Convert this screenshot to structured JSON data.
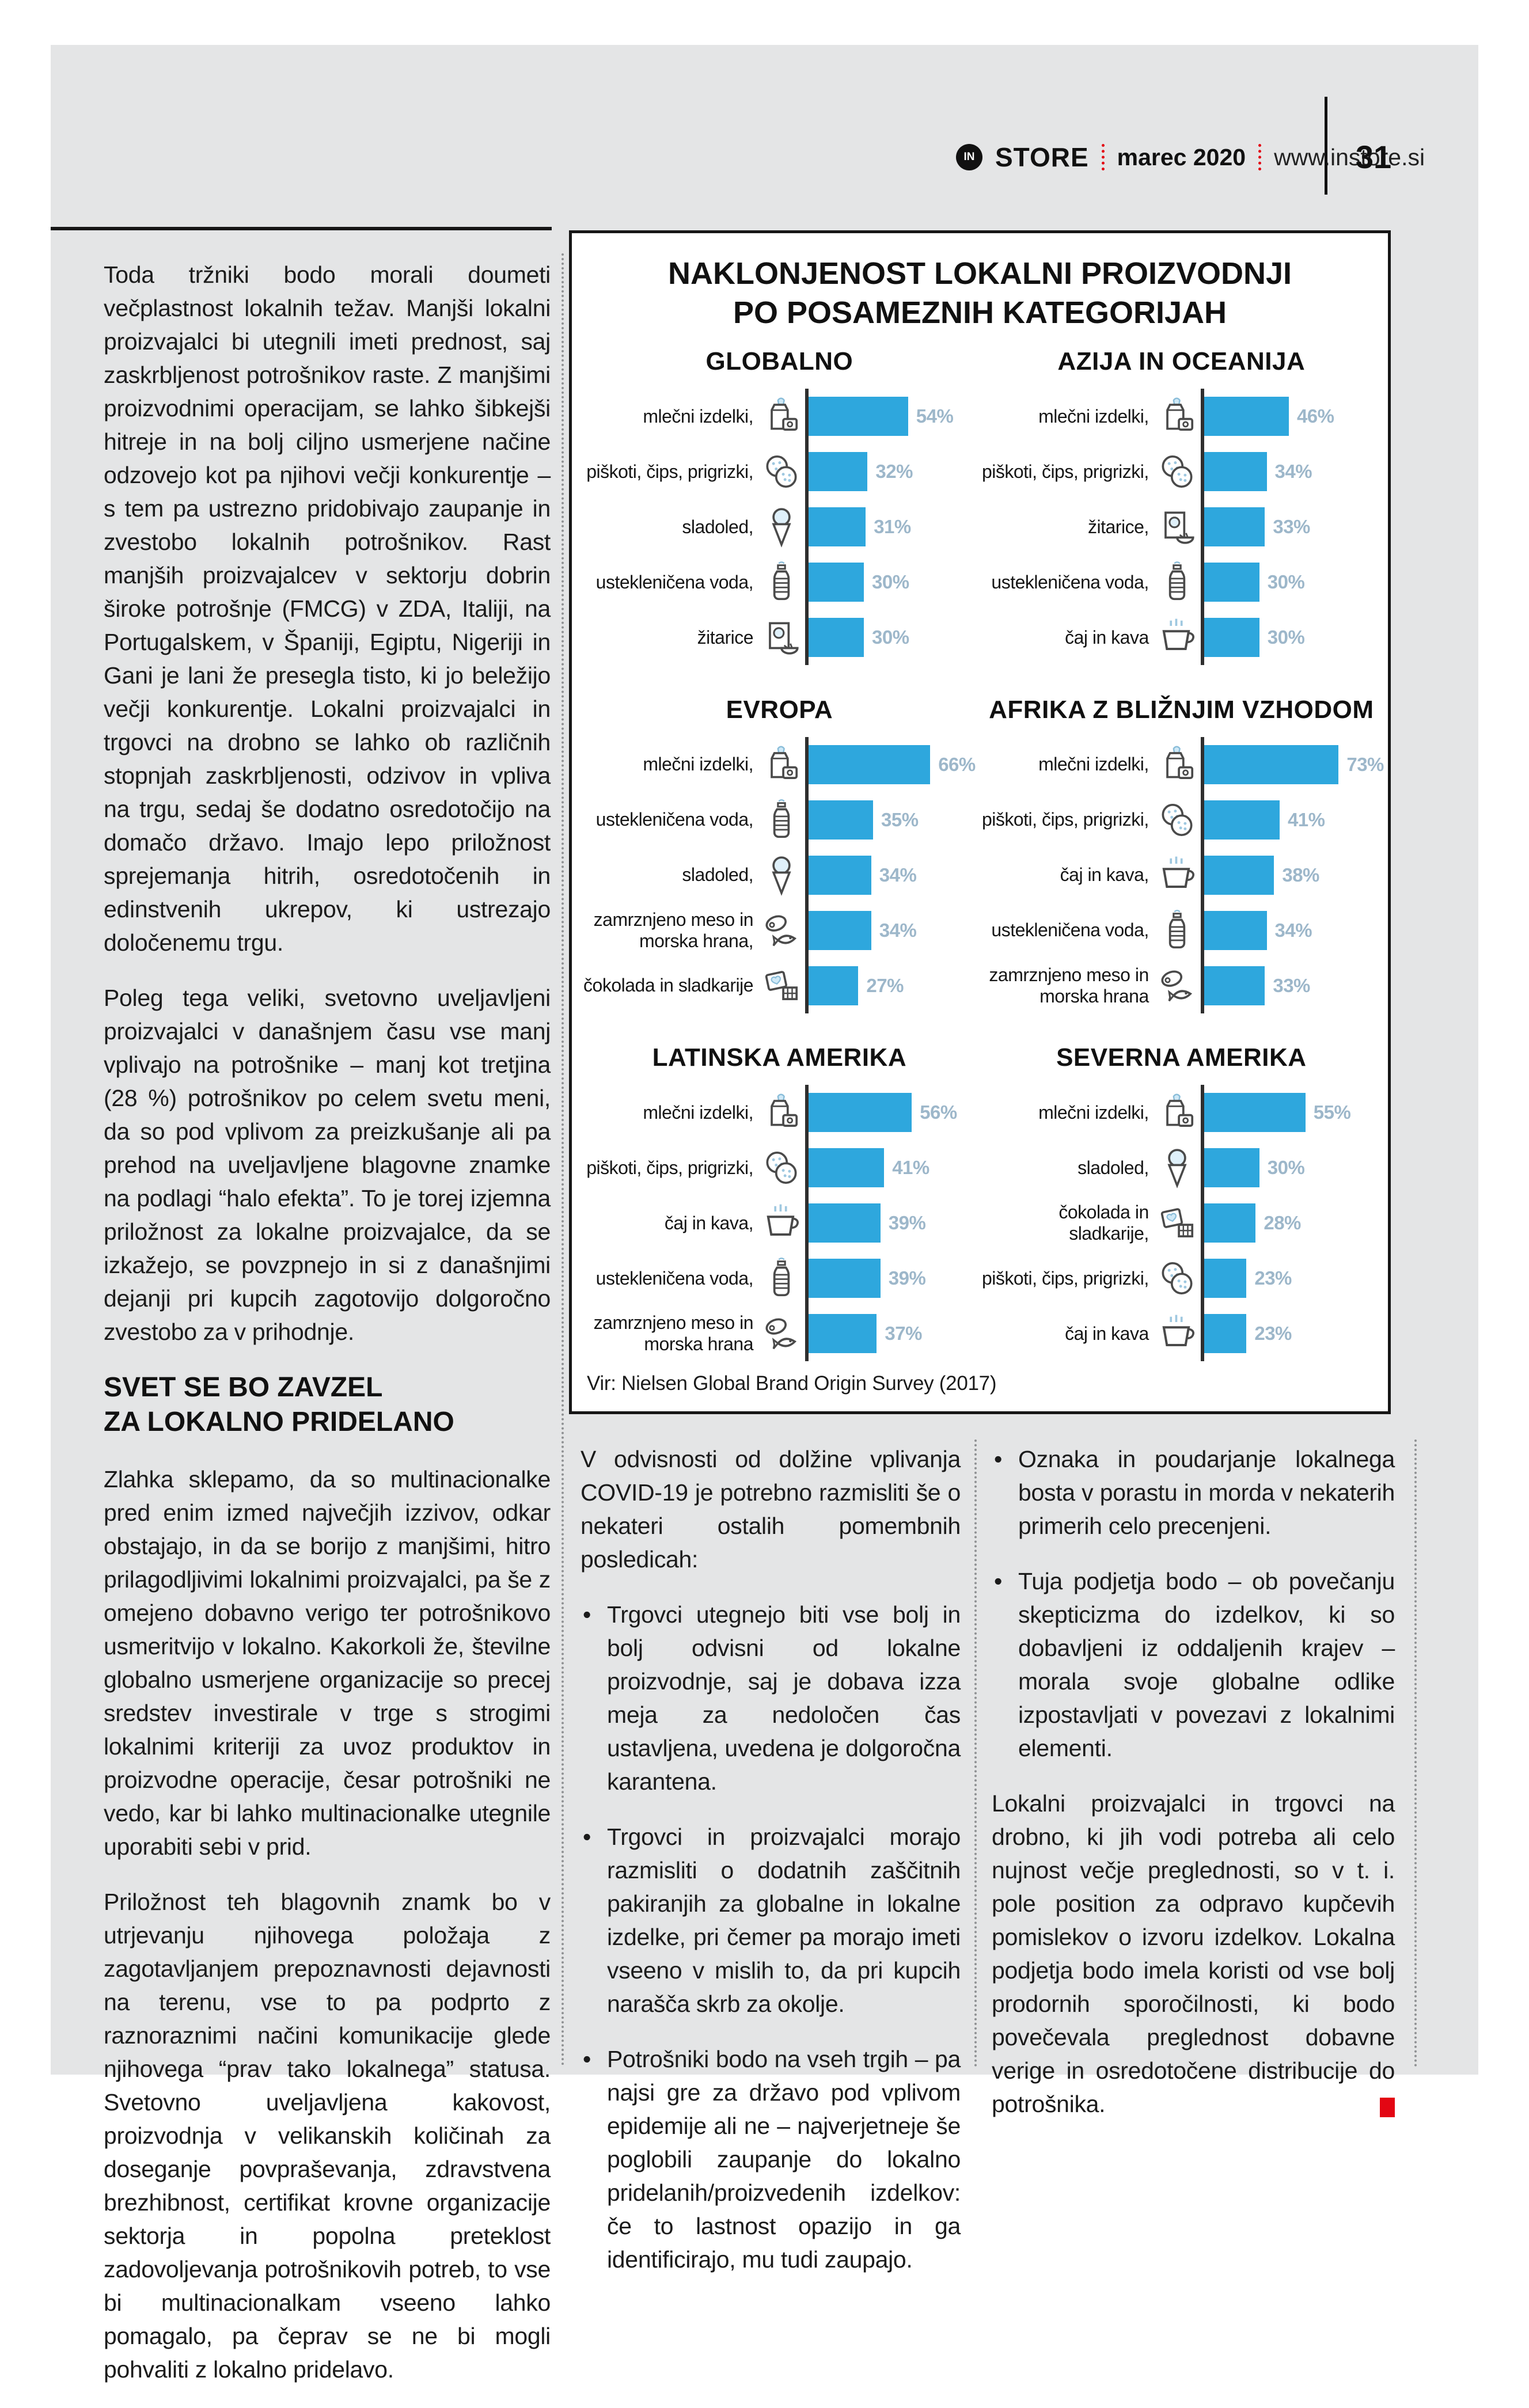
{
  "header": {
    "logo_monogram": "IN",
    "brand": "STORE",
    "issue": "marec 2020",
    "site": "www.instore.si",
    "page_number": "31",
    "accent_red": "#e30613"
  },
  "left_column": {
    "paragraphs_before": [
      "Toda tržniki bodo morali doumeti večplastnost lokalnih težav. Manjši lokalni proizvajalci bi utegnili imeti prednost, saj zaskrbljenost potrošnikov raste. Z manjšimi proizvodnimi operacijam, se lahko šibkejši hitreje in na bolj ciljno usmerjene načine odzovejo kot pa njihovi večji konkurentje – s tem pa ustrezno pridobivajo zaupanje in zvestobo lokalnih potrošnikov. Rast manjših proizvajalcev v sektorju dobrin široke potrošnje (FMCG) v ZDA, Italiji, na Portugalskem, v Španiji, Egiptu, Nigeriji in Gani je lani že presegla tisto, ki jo beležijo večji konkurentje. Lokalni proizvajalci in trgovci na drobno se lahko ob različnih stopnjah zaskrbljenosti, odzivov in vpliva na trgu, sedaj še dodatno osredotočijo na domačo državo. Imajo lepo priložnost sprejemanja hitrih, osredotočenih in edinstvenih ukrepov, ki ustrezajo določenemu trgu.",
      "Poleg tega veliki, svetovno uveljavljeni proizvajalci v današnjem času vse manj vplivajo na potrošnike – manj kot tretjina (28 %) potrošnikov po celem svetu meni, da so pod vplivom za preizkušanje ali pa prehod na uveljavljene blagovne znamke na podlagi “halo efekta”. To je torej izjemna priložnost za lokalne proizvajalce, da se izkažejo, se povzpnejo in si z današnjimi dejanji pri kupcih zagotovijo dolgoročno zvestobo za v prihodnje."
    ],
    "heading_line1": "SVET SE BO ZAVZEL",
    "heading_line2": "ZA LOKALNO PRIDELANO",
    "paragraphs_after": [
      "Zlahka sklepamo, da so multinacionalke pred enim izmed največjih izzivov, odkar obstajajo, in da se borijo z manjšimi, hitro prilagodljivimi lokalnimi proizvajalci, pa še z omejeno dobavno verigo ter potrošnikovo usmeritvijo v lokalno. Kakorkoli že, številne globalno usmerjene organizacije so precej sredstev investirale v trge s strogimi lokalnimi kriteriji za uvoz produktov in proizvodne operacije, česar potrošniki ne vedo, kar bi lahko multinacionalke utegnile uporabiti sebi v prid.",
      "Priložnost teh blagovnih znamk bo v utrjevanju njihovega položaja z zagotavljanjem prepoznavnosti dejavnosti na terenu, vse to pa podprto z raznoraznimi načini komunikacije glede njihovega “prav tako lokalnega” statusa. Svetovno uveljavljena kakovost, proizvodnja v velikanskih količinah za doseganje povpraševanja, zdravstvena brezhibnost, certifikat krovne organizacije sektorja in popolna preteklost zadovoljevanja potrošnikovih potreb, to vse bi multinacionalkam vseeno lahko pomagalo, pa čeprav se ne bi mogli pohvaliti z lokalno pridelavo."
    ]
  },
  "bottom_middle_column": {
    "intro": "V odvisnosti od dolžine vplivanja COVID-19 je potrebno razmisliti še o nekateri ostalih pomembnih posledicah:",
    "bullets": [
      "Trgovci utegnejo biti vse bolj in bolj odvisni od lokalne proizvodnje, saj je dobava izza meja za nedoločen čas ustavljena, uvedena je dolgoročna karantena.",
      "Trgovci in proizvajalci morajo razmisliti o dodatnih zaščitnih pakiranjih za globalne in lokalne izdelke, pri čemer pa morajo imeti vseeno v mislih to, da pri kupcih narašča skrb za okolje.",
      "Potrošniki bodo na vseh trgih – pa najsi gre za državo pod vplivom epidemije ali ne – najverjetneje še poglobili zaupanje do lokalno pridelanih/proizvedenih izdelkov: če to lastnost opazijo in ga identificirajo, mu tudi zaupajo."
    ]
  },
  "bottom_right_column": {
    "bullets": [
      "Oznaka in poudarjanje lokalnega bosta v porastu in morda v nekaterih primerih celo precenjeni.",
      "Tuja podjetja bodo – ob povečanju skepticizma do izdelkov, ki so dobavljeni iz oddaljenih krajev – morala svoje globalne odlike izpostavljati v povezavi z lokalnimi elementi."
    ],
    "closing": "Lokalni proizvajalci in trgovci na drobno, ki jih vodi potreba ali celo nujnost večje preglednosti, so v t. i. pole position za odpravo kupčevih pomislekov o izvoru izdelkov. Lokalna podjetja bodo imela koristi od vse bolj prodornih sporočilnosti, ki bodo povečevala preglednost dobavne verige in osredotočene distribucije do potrošnika."
  },
  "chart_data": {
    "type": "bar",
    "orientation": "horizontal",
    "unit": "%",
    "title_lines": [
      "NAKLONJENOST LOKALNI PROIZVODNJI",
      "PO POSAMEZNIH KATEGORIJAH"
    ],
    "source": "Vir: Nielsen Global Brand Origin Survey (2017)",
    "bar_color": "#2ea7dd",
    "value_label_color": "#9db7ca",
    "axis_color": "#2f2f2f",
    "xlim": [
      0,
      80
    ],
    "grid": false,
    "legend": false,
    "panels": [
      {
        "title": "GLOBALNO",
        "items": [
          {
            "label": "mlečni izdelki,",
            "icon": "dairy-icon",
            "value": 54
          },
          {
            "label": "piškoti, čips, prigrizki,",
            "icon": "snacks-icon",
            "value": 32
          },
          {
            "label": "sladoled,",
            "icon": "ice-cream-icon",
            "value": 31
          },
          {
            "label": "ustekleničena voda,",
            "icon": "water-bottle-icon",
            "value": 30
          },
          {
            "label": "žitarice",
            "icon": "cereal-icon",
            "value": 30
          }
        ]
      },
      {
        "title": "AZIJA IN OCEANIJA",
        "items": [
          {
            "label": "mlečni izdelki,",
            "icon": "dairy-icon",
            "value": 46
          },
          {
            "label": "piškoti, čips, prigrizki,",
            "icon": "snacks-icon",
            "value": 34
          },
          {
            "label": "žitarice,",
            "icon": "cereal-icon",
            "value": 33
          },
          {
            "label": "ustekleničena voda,",
            "icon": "water-bottle-icon",
            "value": 30
          },
          {
            "label": "čaj in kava",
            "icon": "tea-coffee-icon",
            "value": 30
          }
        ]
      },
      {
        "title": "EVROPA",
        "items": [
          {
            "label": "mlečni izdelki,",
            "icon": "dairy-icon",
            "value": 66
          },
          {
            "label": "ustekleničena voda,",
            "icon": "water-bottle-icon",
            "value": 35
          },
          {
            "label": "sladoled,",
            "icon": "ice-cream-icon",
            "value": 34
          },
          {
            "label": "zamrznjeno meso in morska hrana,",
            "icon": "frozen-meat-icon",
            "value": 34
          },
          {
            "label": "čokolada in sladkarije",
            "icon": "chocolate-icon",
            "value": 27
          }
        ]
      },
      {
        "title": "AFRIKA Z BLIŽNJIM VZHODOM",
        "items": [
          {
            "label": "mlečni izdelki,",
            "icon": "dairy-icon",
            "value": 73
          },
          {
            "label": "piškoti, čips, prigrizki,",
            "icon": "snacks-icon",
            "value": 41
          },
          {
            "label": "čaj in kava,",
            "icon": "tea-coffee-icon",
            "value": 38
          },
          {
            "label": "ustekleničena voda,",
            "icon": "water-bottle-icon",
            "value": 34
          },
          {
            "label": "zamrznjeno meso in morska hrana",
            "icon": "frozen-meat-icon",
            "value": 33
          }
        ]
      },
      {
        "title": "LATINSKA AMERIKA",
        "items": [
          {
            "label": "mlečni izdelki,",
            "icon": "dairy-icon",
            "value": 56
          },
          {
            "label": "piškoti, čips, prigrizki,",
            "icon": "snacks-icon",
            "value": 41
          },
          {
            "label": "čaj in kava,",
            "icon": "tea-coffee-icon",
            "value": 39
          },
          {
            "label": "ustekleničena voda,",
            "icon": "water-bottle-icon",
            "value": 39
          },
          {
            "label": "zamrznjeno meso in morska hrana",
            "icon": "frozen-meat-icon",
            "value": 37
          }
        ]
      },
      {
        "title": "SEVERNA AMERIKA",
        "items": [
          {
            "label": "mlečni izdelki,",
            "icon": "dairy-icon",
            "value": 55
          },
          {
            "label": "sladoled,",
            "icon": "ice-cream-icon",
            "value": 30
          },
          {
            "label": "čokolada in sladkarije,",
            "icon": "chocolate-icon",
            "value": 28
          },
          {
            "label": "piškoti, čips, prigrizki,",
            "icon": "snacks-icon",
            "value": 23
          },
          {
            "label": "čaj in kava",
            "icon": "tea-coffee-icon",
            "value": 23
          }
        ]
      }
    ]
  }
}
